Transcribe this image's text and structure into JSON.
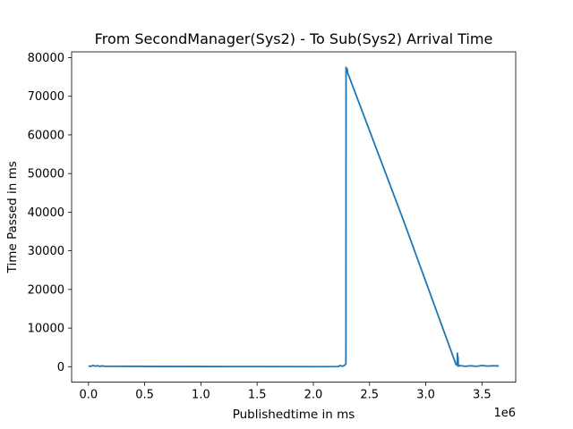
{
  "chart_data": {
    "type": "line",
    "title": "From SecondManager(Sys2) - To Sub(Sys2) Arrival Time",
    "xlabel": "Publishedtime in ms",
    "ylabel": "Time Passed in ms",
    "x_offset_label": "1e6",
    "xlim": [
      -150000,
      3800000
    ],
    "ylim": [
      -4000,
      81500
    ],
    "xticks": [
      0,
      500000,
      1000000,
      1500000,
      2000000,
      2500000,
      3000000,
      3500000
    ],
    "xtick_labels": [
      "0.0",
      "0.5",
      "1.0",
      "1.5",
      "2.0",
      "2.5",
      "3.0",
      "3.5"
    ],
    "yticks": [
      0,
      10000,
      20000,
      30000,
      40000,
      50000,
      60000,
      70000,
      80000
    ],
    "ytick_labels": [
      "0",
      "10000",
      "20000",
      "30000",
      "40000",
      "50000",
      "60000",
      "70000",
      "80000"
    ],
    "grid": false,
    "legend": false,
    "series": [
      {
        "color": "#1f77b4",
        "x": [
          0,
          20000,
          40000,
          60000,
          80000,
          100000,
          120000,
          150000,
          500000,
          1000000,
          1500000,
          2000000,
          2220000,
          2240000,
          2260000,
          2280000,
          2290000,
          2291000,
          2300000,
          2302000,
          2304000,
          2800000,
          3270000,
          3280000,
          3282000,
          3285000,
          3287000,
          3290000,
          3300000,
          3350000,
          3400000,
          3450000,
          3500000,
          3550000,
          3600000,
          3650000
        ],
        "y": [
          200,
          100,
          300,
          150,
          250,
          100,
          200,
          100,
          80,
          60,
          40,
          20,
          50,
          300,
          100,
          400,
          800,
          77500,
          76500,
          77000,
          76200,
          38000,
          500,
          800,
          3500,
          200,
          2500,
          100,
          300,
          100,
          250,
          100,
          300,
          150,
          250,
          200
        ]
      }
    ]
  }
}
